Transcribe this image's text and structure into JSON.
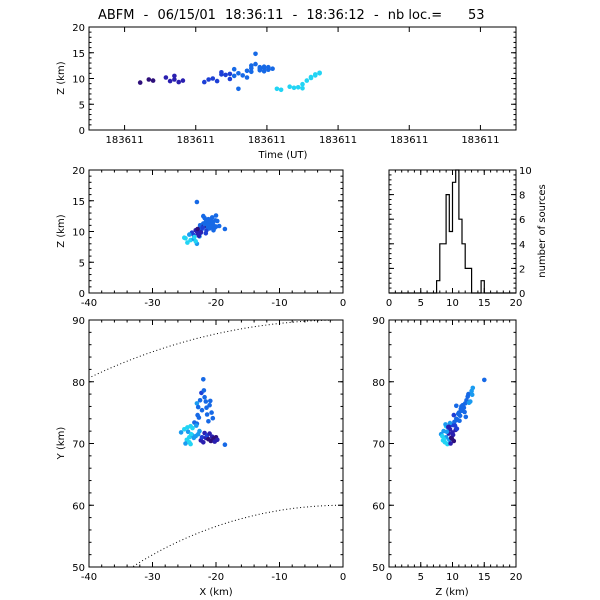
{
  "title": {
    "station": "ABFM",
    "date": "06/15/01",
    "time_start": "18:36:11",
    "time_end": "18:36:12",
    "count_label": "nb loc.=",
    "count": "53"
  },
  "colors": {
    "axis": "#000000",
    "point_palette": [
      "#2e0f7a",
      "#2a1fb0",
      "#1d3fd6",
      "#1669e6",
      "#1a9bf0",
      "#22d4f4"
    ]
  },
  "chart_data": [
    {
      "id": "time_height",
      "type": "scatter",
      "xlabel": "Time (UT)",
      "ylabel": "Z (km)",
      "xlim": [
        0,
        1
      ],
      "ylim": [
        0,
        20
      ],
      "x_tick_labels": [
        "183611",
        "183611",
        "183611",
        "183611",
        "183611",
        "183611"
      ],
      "y_ticks": [
        0,
        5,
        10,
        15,
        20
      ],
      "x": [
        0.12,
        0.14,
        0.15,
        0.18,
        0.19,
        0.2,
        0.2,
        0.21,
        0.22,
        0.27,
        0.28,
        0.29,
        0.3,
        0.31,
        0.31,
        0.32,
        0.33,
        0.33,
        0.34,
        0.34,
        0.35,
        0.35,
        0.36,
        0.37,
        0.37,
        0.38,
        0.38,
        0.38,
        0.39,
        0.39,
        0.4,
        0.4,
        0.4,
        0.41,
        0.41,
        0.41,
        0.42,
        0.42,
        0.43,
        0.44,
        0.45,
        0.47,
        0.48,
        0.49,
        0.5,
        0.5,
        0.51,
        0.52,
        0.52,
        0.53,
        0.53,
        0.54,
        0.54
      ],
      "y": [
        9.2,
        9.8,
        9.6,
        10.2,
        9.5,
        9.8,
        10.5,
        9.3,
        9.6,
        9.3,
        9.8,
        10.0,
        9.5,
        10.8,
        11.2,
        10.7,
        10.9,
        9.9,
        10.5,
        11.8,
        11.0,
        8.0,
        10.6,
        10.2,
        11.5,
        12.5,
        12.0,
        11.3,
        14.8,
        12.8,
        11.6,
        12.2,
        11.9,
        11.4,
        12.0,
        12.3,
        11.7,
        12.2,
        11.9,
        8.0,
        7.8,
        8.4,
        8.2,
        8.3,
        8.1,
        8.9,
        9.6,
        10.1,
        10.3,
        10.6,
        10.8,
        11.0,
        11.1
      ],
      "c": [
        0,
        0,
        0,
        1,
        1,
        1,
        1,
        1,
        1,
        2,
        2,
        2,
        2,
        2,
        2,
        2,
        2,
        2,
        3,
        3,
        3,
        3,
        3,
        3,
        3,
        3,
        3,
        3,
        3,
        3,
        3,
        3,
        3,
        3,
        3,
        3,
        3,
        3,
        3,
        5,
        5,
        5,
        5,
        5,
        5,
        5,
        5,
        5,
        5,
        5,
        5,
        5,
        5
      ]
    },
    {
      "id": "x_height",
      "type": "scatter",
      "xlabel": "",
      "ylabel": "Z (km)",
      "xlim": [
        -40,
        0
      ],
      "ylim": [
        0,
        20
      ],
      "x_ticks": [
        -40,
        -30,
        -20,
        -10,
        0
      ],
      "y_ticks": [
        0,
        5,
        10,
        15,
        20
      ],
      "x": [
        -25.0,
        -24.5,
        -24.0,
        -23.8,
        -23.5,
        -23.2,
        -23.0,
        -23.0,
        -22.8,
        -22.6,
        -22.5,
        -22.4,
        -22.3,
        -22.2,
        -22.0,
        -22.0,
        -21.8,
        -21.6,
        -21.5,
        -21.4,
        -21.3,
        -21.2,
        -21.0,
        -21.0,
        -20.8,
        -20.6,
        -20.5,
        -20.4,
        -20.2,
        -20.0,
        -20.0,
        -19.8,
        -19.5,
        -23.5,
        -23.0,
        -22.6,
        -24.2,
        -22.9,
        -21.9,
        -23.2,
        -22.4,
        -22.1,
        -21.8,
        -21.6,
        -20.9,
        -20.7,
        -24.8,
        -23.4,
        -21.3,
        -20.4,
        -22.7,
        -20.1,
        -18.6
      ],
      "y": [
        9.0,
        8.2,
        8.6,
        9.8,
        9.4,
        10.2,
        14.8,
        10.0,
        9.6,
        10.5,
        11.0,
        9.8,
        10.3,
        10.7,
        11.3,
        12.5,
        12.2,
        11.6,
        10.2,
        10.8,
        11.8,
        12.0,
        11.4,
        10.5,
        11.9,
        12.3,
        11.5,
        11.0,
        10.6,
        10.8,
        12.6,
        11.7,
        10.9,
        8.8,
        8.0,
        9.2,
        9.5,
        10.4,
        10.9,
        8.4,
        9.9,
        10.6,
        11.2,
        9.7,
        11.1,
        10.7,
        8.9,
        9.1,
        11.0,
        10.2,
        9.3,
        11.8,
        10.4
      ],
      "c": [
        5,
        5,
        5,
        2,
        2,
        1,
        3,
        1,
        1,
        2,
        3,
        2,
        3,
        3,
        3,
        3,
        3,
        3,
        2,
        3,
        3,
        3,
        3,
        3,
        3,
        3,
        3,
        3,
        3,
        3,
        3,
        3,
        3,
        4,
        4,
        4,
        4,
        0,
        0,
        5,
        1,
        2,
        3,
        2,
        3,
        3,
        5,
        5,
        3,
        3,
        1,
        3,
        3
      ]
    },
    {
      "id": "z_histogram",
      "type": "bar",
      "xlabel": "",
      "ylabel": "number of sources",
      "xlim": [
        0,
        20
      ],
      "ylim": [
        0,
        10
      ],
      "x_ticks": [
        0,
        5,
        10,
        15,
        20
      ],
      "y_ticks": [
        0,
        2,
        4,
        6,
        8,
        10
      ],
      "bin_edges": [
        0,
        0.5,
        1,
        1.5,
        2,
        2.5,
        3,
        3.5,
        4,
        4.5,
        5,
        5.5,
        6,
        6.5,
        7,
        7.5,
        8,
        8.5,
        9,
        9.5,
        10,
        10.5,
        11,
        11.5,
        12,
        12.5,
        13,
        13.5,
        14,
        14.5,
        15,
        15.5,
        16,
        16.5,
        17,
        17.5,
        18,
        18.5,
        19,
        19.5,
        20
      ],
      "counts": [
        0,
        0,
        0,
        0,
        0,
        0,
        0,
        0,
        0,
        0,
        0,
        0,
        0,
        0,
        0,
        1,
        4,
        4,
        8,
        5,
        9,
        10,
        6,
        4,
        2,
        2,
        0,
        0,
        0,
        1,
        0,
        0,
        0,
        0,
        0,
        0,
        0,
        0,
        0,
        0
      ]
    },
    {
      "id": "plan_view",
      "type": "scatter",
      "xlabel": "X (km)",
      "ylabel": "Y (km)",
      "xlim": [
        -40,
        0
      ],
      "ylim": [
        50,
        90
      ],
      "x_ticks": [
        -40,
        -30,
        -20,
        -10,
        0
      ],
      "y_ticks": [
        50,
        60,
        70,
        80,
        90
      ],
      "range_rings_km": [
        60,
        90
      ],
      "x": [
        -25.5,
        -25.0,
        -24.6,
        -24.2,
        -24.0,
        -23.8,
        -23.5,
        -23.2,
        -23.0,
        -22.8,
        -22.6,
        -22.4,
        -22.2,
        -22.0,
        -21.8,
        -21.6,
        -21.4,
        -21.2,
        -21.0,
        -20.8,
        -20.6,
        -20.4,
        -20.2,
        -20.0,
        -19.8,
        -18.6,
        -23.0,
        -22.8,
        -22.5,
        -22.3,
        -22.0,
        -21.6,
        -21.4,
        -21.2,
        -21.0,
        -24.8,
        -24.4,
        -24.0,
        -23.7,
        -23.4,
        -23.1,
        -22.7,
        -22.2,
        -21.9,
        -21.5,
        -20.9,
        -20.7,
        -20.5,
        -24.5,
        -24.2,
        -23.9,
        -22.9,
        -21.8
      ],
      "y": [
        71.8,
        72.3,
        70.6,
        71.0,
        72.8,
        71.4,
        70.9,
        71.2,
        73.2,
        71.5,
        72.0,
        70.5,
        71.0,
        70.2,
        71.7,
        70.9,
        71.3,
        70.7,
        71.6,
        70.4,
        71.1,
        70.8,
        70.3,
        71.0,
        70.6,
        69.8,
        76.5,
        75.9,
        77.0,
        78.2,
        80.4,
        76.8,
        74.7,
        73.6,
        76.2,
        70.0,
        71.9,
        69.9,
        72.5,
        73.4,
        72.9,
        74.2,
        75.4,
        78.6,
        75.8,
        76.9,
        75.0,
        74.1,
        72.6,
        70.2,
        71.5,
        74.6,
        77.5
      ],
      "c": [
        4,
        5,
        5,
        5,
        5,
        4,
        4,
        4,
        3,
        4,
        4,
        1,
        2,
        1,
        1,
        1,
        2,
        0,
        1,
        0,
        1,
        0,
        1,
        0,
        1,
        3,
        4,
        3,
        3,
        2,
        3,
        3,
        3,
        3,
        3,
        4,
        4,
        5,
        5,
        3,
        4,
        3,
        3,
        3,
        3,
        3,
        3,
        3,
        5,
        5,
        5,
        3,
        3
      ]
    },
    {
      "id": "z_vs_y",
      "type": "scatter",
      "xlabel": "Z (km)",
      "ylabel": "",
      "xlim": [
        0,
        20
      ],
      "ylim": [
        50,
        90
      ],
      "x_ticks": [
        0,
        5,
        10,
        15,
        20
      ],
      "y_ticks": [
        50,
        60,
        70,
        80,
        90
      ],
      "x": [
        8.2,
        8.5,
        8.6,
        8.8,
        9.0,
        9.0,
        9.2,
        9.4,
        9.5,
        9.6,
        9.8,
        10.0,
        10.0,
        10.2,
        10.3,
        10.5,
        10.6,
        10.8,
        11.0,
        11.2,
        11.4,
        11.5,
        11.8,
        12.0,
        12.2,
        12.5,
        12.8,
        13.0,
        13.2,
        15.0,
        8.4,
        8.9,
        9.3,
        9.7,
        10.1,
        10.4,
        10.9,
        11.3,
        11.6,
        12.1,
        9.1,
        9.9,
        10.7,
        11.1,
        12.4,
        8.7,
        9.6,
        10.2,
        11.9,
        12.6,
        13.1,
        10.6,
        9.4
      ],
      "y": [
        71.5,
        70.5,
        72.0,
        70.2,
        71.0,
        72.8,
        69.9,
        71.6,
        70.6,
        72.3,
        70.9,
        71.8,
        73.0,
        70.4,
        73.5,
        72.2,
        74.0,
        73.8,
        75.0,
        74.5,
        76.0,
        75.3,
        75.8,
        76.5,
        77.0,
        78.0,
        76.8,
        78.5,
        79.0,
        80.3,
        71.2,
        73.1,
        72.6,
        70.0,
        71.4,
        72.9,
        74.8,
        75.6,
        76.2,
        74.3,
        71.9,
        70.8,
        72.4,
        73.7,
        77.6,
        70.7,
        73.3,
        74.6,
        75.1,
        76.6,
        77.9,
        76.1,
        72.7
      ],
      "c": [
        4,
        5,
        4,
        5,
        4,
        5,
        5,
        1,
        4,
        1,
        0,
        1,
        2,
        0,
        3,
        1,
        3,
        3,
        3,
        3,
        3,
        3,
        3,
        3,
        3,
        3,
        4,
        4,
        4,
        3,
        5,
        4,
        2,
        1,
        1,
        2,
        3,
        3,
        3,
        3,
        4,
        0,
        2,
        3,
        3,
        5,
        4,
        2,
        3,
        4,
        4,
        3,
        1
      ]
    }
  ]
}
